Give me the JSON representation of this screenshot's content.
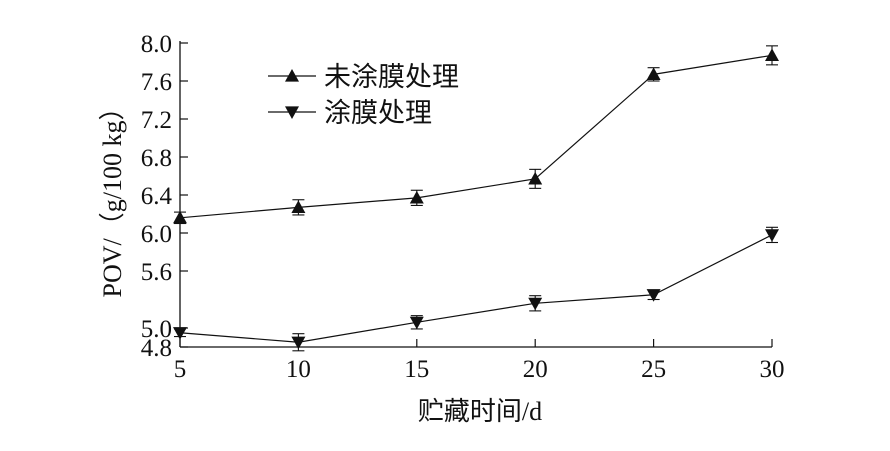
{
  "chart_data": {
    "type": "line",
    "xlabel": "贮藏时间/d",
    "ylabel": "POV/（g/100 kg）",
    "x": [
      5,
      10,
      15,
      20,
      25,
      30
    ],
    "xlim": [
      5,
      30
    ],
    "ylim": [
      4.8,
      8.0
    ],
    "x_ticks": [
      "5",
      "10",
      "15",
      "20",
      "25",
      "30"
    ],
    "y_ticks": [
      "4.8",
      "5.0",
      "5.6",
      "6.0",
      "6.4",
      "6.8",
      "7.2",
      "7.6",
      "8.0"
    ],
    "y_tick_values": [
      4.8,
      5.0,
      5.6,
      6.0,
      6.4,
      6.8,
      7.2,
      7.6,
      8.0
    ],
    "y_axis_note": "axis break between 4.8 and 6.0; segment 4.8–6.0 uses a compressed scale",
    "grid": false,
    "legend": "top-left",
    "series": [
      {
        "name": "未涂膜处理",
        "marker": "triangle-up",
        "values": [
          6.16,
          6.27,
          6.37,
          6.57,
          7.67,
          7.87
        ],
        "errors": [
          0.06,
          0.08,
          0.08,
          0.1,
          0.07,
          0.1
        ]
      },
      {
        "name": "涂膜处理",
        "marker": "triangle-down",
        "values": [
          4.95,
          4.85,
          5.06,
          5.26,
          5.35,
          5.98
        ],
        "errors": [
          0.04,
          0.09,
          0.07,
          0.08,
          0.05,
          0.08
        ]
      }
    ]
  }
}
